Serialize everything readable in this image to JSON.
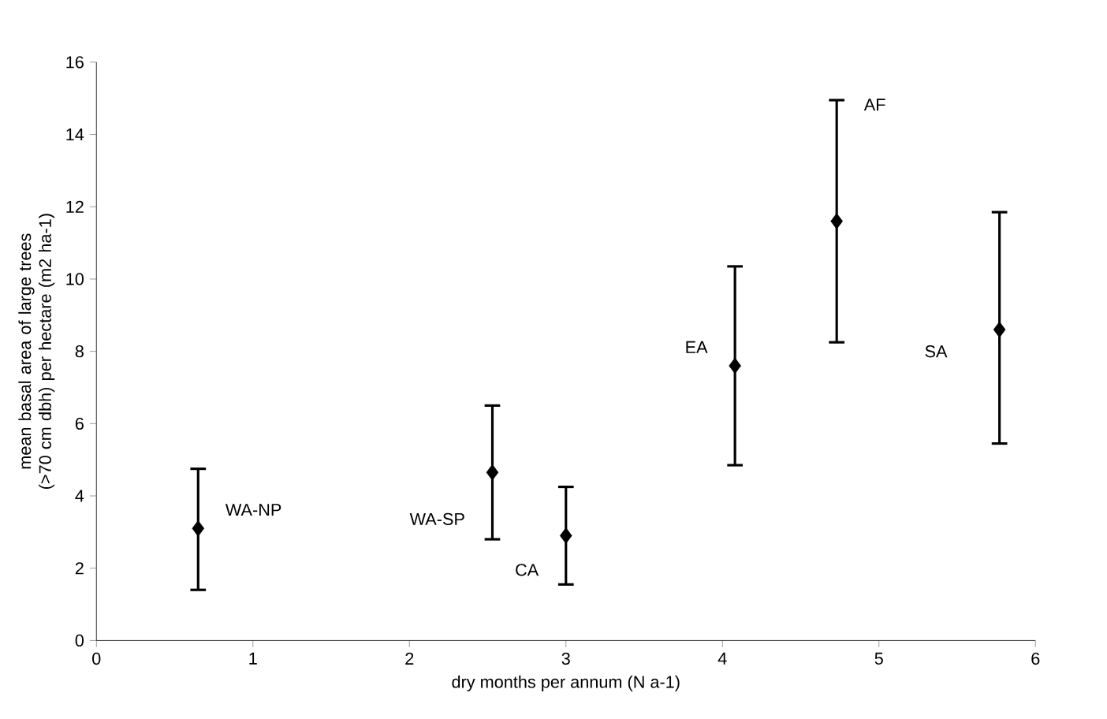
{
  "chart_data": {
    "type": "scatter",
    "xlabel": "dry months per annum (N a-1)",
    "ylabel": "mean basal area of large trees  (>70 cm dbh) per hectare (m2 ha-1)",
    "x": [
      0.65,
      2.53,
      3.0,
      4.08,
      4.73,
      5.77
    ],
    "series": [
      {
        "color": "#000000",
        "values": [
          3.1,
          4.65,
          2.9,
          7.6,
          11.6,
          8.6
        ],
        "errors": [
          [
            1.4,
            4.75
          ],
          [
            2.8,
            6.5
          ],
          [
            1.55,
            4.25
          ],
          [
            4.85,
            10.35
          ],
          [
            8.25,
            14.95
          ],
          [
            5.45,
            11.85
          ]
        ]
      }
    ],
    "marker": "diamond",
    "grid": false,
    "xlim": [
      0,
      6
    ],
    "xticks": [
      0,
      1,
      2,
      3,
      4,
      5,
      6
    ],
    "ylim": [
      0,
      16
    ],
    "yticks": [
      0,
      2,
      4,
      6,
      8,
      10,
      12,
      14,
      16
    ],
    "annotations": [
      "WA-NP",
      "WA-SP",
      "CA",
      "EA",
      "AF",
      "SA"
    ]
  }
}
